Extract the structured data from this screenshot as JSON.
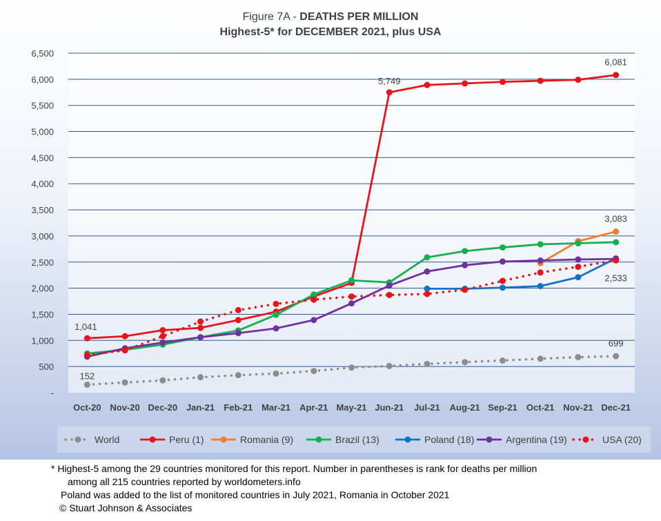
{
  "chart_data": {
    "type": "line",
    "title_prefix": "Figure 7A - ",
    "title_bold": "DEATHS PER MILLION",
    "subtitle": "Highest-5* for DECEMBER 2021, plus USA",
    "categories": [
      "Oct-20",
      "Nov-20",
      "Dec-20",
      "Jan-21",
      "Feb-21",
      "Mar-21",
      "Apr-21",
      "May-21",
      "Jun-21",
      "Jul-21",
      "Aug-21",
      "Sep-21",
      "Oct-21",
      "Nov-21",
      "Dec-21"
    ],
    "ylim": [
      0,
      6500
    ],
    "yticks": [
      "-",
      "500",
      "1,000",
      "1,500",
      "2,000",
      "2,500",
      "3,000",
      "3,500",
      "4,000",
      "4,500",
      "5,000",
      "5,500",
      "6,000",
      "6,500"
    ],
    "grid": true,
    "legend_position": "bottom",
    "series": [
      {
        "name": "World",
        "color": "#8c8c8c",
        "dash": true,
        "values": [
          152,
          195,
          235,
          295,
          335,
          365,
          415,
          480,
          510,
          550,
          585,
          615,
          650,
          680,
          699
        ]
      },
      {
        "name": "Peru (1)",
        "color": "#e8141b",
        "dash": false,
        "values": [
          1041,
          1080,
          1195,
          1240,
          1390,
          1550,
          1840,
          2100,
          5749,
          5890,
          5920,
          5950,
          5970,
          5990,
          6081
        ]
      },
      {
        "name": "Romania (9)",
        "color": "#ed7d31",
        "dash": false,
        "values": [
          null,
          null,
          null,
          null,
          null,
          null,
          null,
          null,
          null,
          null,
          null,
          null,
          2480,
          2900,
          3083
        ]
      },
      {
        "name": "Brazil (13)",
        "color": "#14b050",
        "dash": false,
        "values": [
          750,
          820,
          920,
          1060,
          1190,
          1490,
          1880,
          2150,
          2110,
          2590,
          2710,
          2780,
          2840,
          2860,
          2880
        ]
      },
      {
        "name": "Poland (18)",
        "color": "#1472c4",
        "dash": false,
        "values": [
          null,
          null,
          null,
          null,
          null,
          null,
          null,
          null,
          null,
          1990,
          1990,
          2010,
          2040,
          2210,
          2570
        ]
      },
      {
        "name": "Argentina (19)",
        "color": "#7030a0",
        "dash": false,
        "values": [
          690,
          850,
          960,
          1060,
          1140,
          1230,
          1390,
          1710,
          2050,
          2320,
          2440,
          2510,
          2530,
          2550,
          2560
        ]
      },
      {
        "name": "USA (20)",
        "color": "#e8141b",
        "dash": true,
        "values": [
          720,
          810,
          1080,
          1360,
          1580,
          1700,
          1780,
          1840,
          1870,
          1890,
          1970,
          2140,
          2300,
          2410,
          2533
        ]
      }
    ],
    "annotations": [
      {
        "series": "Peru (1)",
        "category": "Oct-20",
        "text": "1,041"
      },
      {
        "series": "Peru (1)",
        "category": "Jun-21",
        "text": "5,749"
      },
      {
        "series": "Peru (1)",
        "category": "Dec-21",
        "text": "6,081"
      },
      {
        "series": "Romania (9)",
        "category": "Dec-21",
        "text": "3,083"
      },
      {
        "series": "USA (20)",
        "category": "Dec-21",
        "text": "2,533"
      },
      {
        "series": "World",
        "category": "Oct-20",
        "text": "152"
      },
      {
        "series": "World",
        "category": "Dec-21",
        "text": "699"
      }
    ]
  },
  "footnotes": [
    "* Highest-5 among the 29 countries monitored for this report. Number in parentheses is rank for deaths per million",
    "among all 215 countries reported by worldometers.info",
    "Poland was added to the list of monitored countries in July 2021, Romania in October 2021",
    "© Stuart Johnson & Associates"
  ]
}
